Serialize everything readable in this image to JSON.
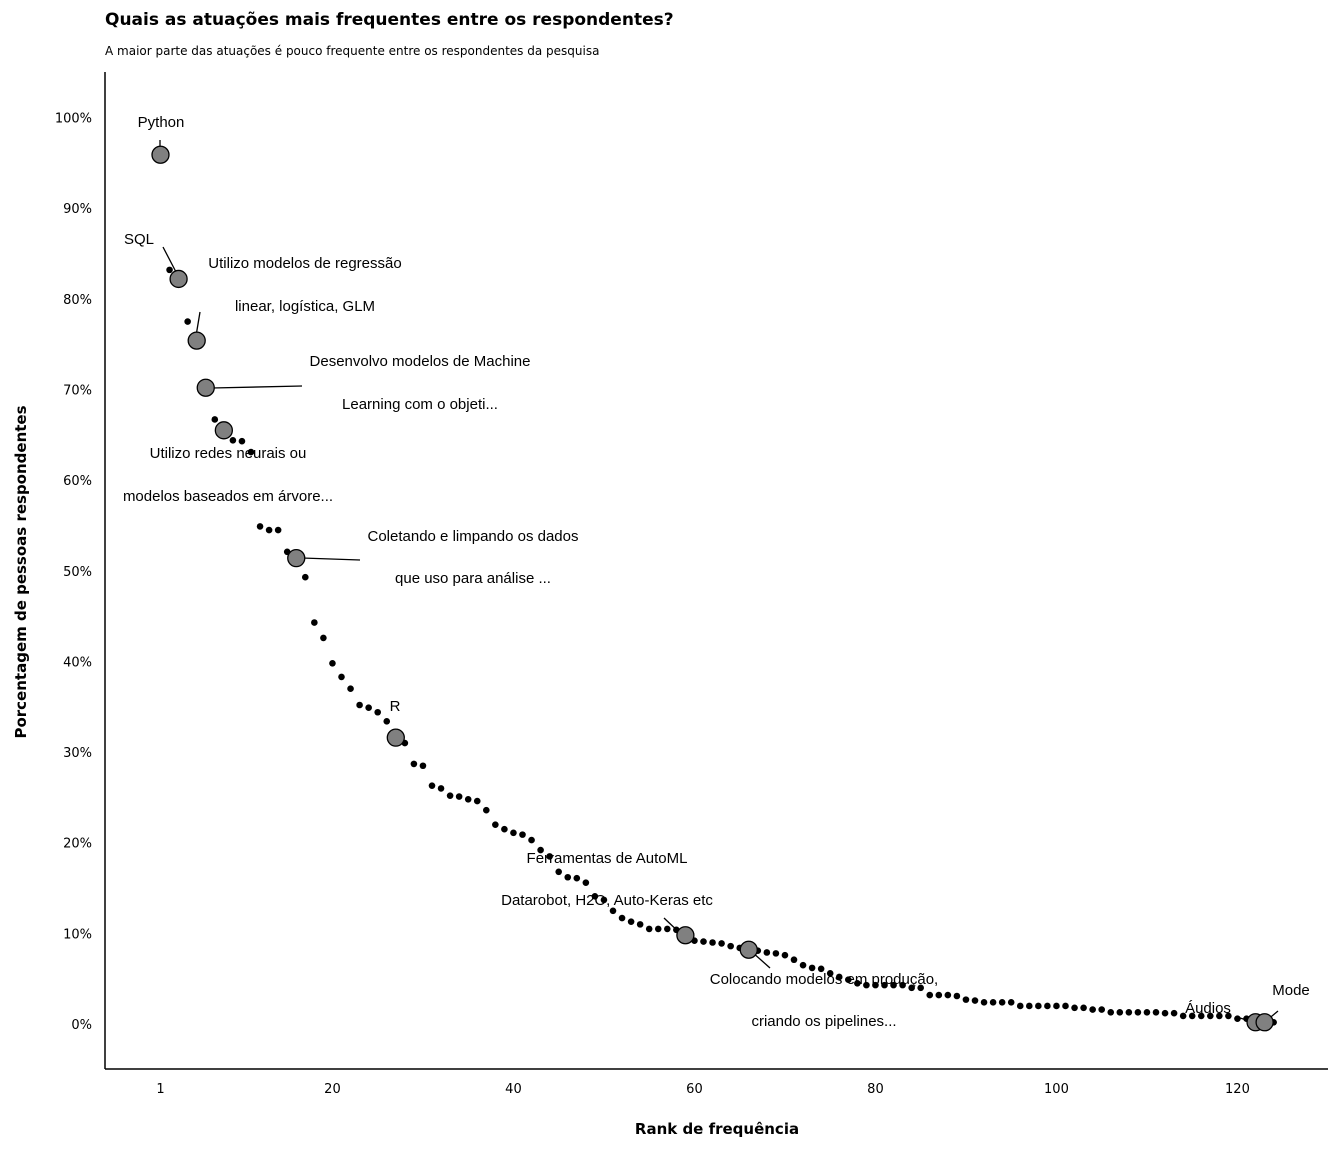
{
  "chart_data": {
    "type": "scatter",
    "title": "Quais as atuações mais frequentes entre os respondentes?",
    "subtitle": "A maior parte das atuações é pouco frequente entre os respondentes da pesquisa",
    "xlabel": "Rank de frequência",
    "ylabel": "Porcentagem de pessoas respondentes",
    "xlim": [
      -5,
      130
    ],
    "ylim": [
      -5,
      105
    ],
    "x_ticks": [
      {
        "value": 1,
        "label": "1"
      },
      {
        "value": 20,
        "label": "20"
      },
      {
        "value": 40,
        "label": "40"
      },
      {
        "value": 60,
        "label": "60"
      },
      {
        "value": 80,
        "label": "80"
      },
      {
        "value": 100,
        "label": "100"
      },
      {
        "value": 120,
        "label": "120"
      }
    ],
    "y_ticks": [
      {
        "value": 0,
        "label": "0%"
      },
      {
        "value": 10,
        "label": "10%"
      },
      {
        "value": 20,
        "label": "20%"
      },
      {
        "value": 30,
        "label": "30%"
      },
      {
        "value": 40,
        "label": "40%"
      },
      {
        "value": 50,
        "label": "50%"
      },
      {
        "value": 60,
        "label": "60%"
      },
      {
        "value": 70,
        "label": "70%"
      },
      {
        "value": 80,
        "label": "80%"
      },
      {
        "value": 90,
        "label": "90%"
      },
      {
        "value": 100,
        "label": "100%"
      }
    ],
    "grid": false,
    "colors": {
      "point": "#000000",
      "highlight_fill": "#808080",
      "highlight_stroke": "#000000"
    },
    "points": [
      [
        1,
        96
      ],
      [
        2,
        83.3
      ],
      [
        3,
        82.3
      ],
      [
        4,
        77.6
      ],
      [
        5,
        75.5
      ],
      [
        6,
        70.3
      ],
      [
        7,
        66.8
      ],
      [
        8,
        65.6
      ],
      [
        9,
        64.5
      ],
      [
        10,
        64.4
      ],
      [
        11,
        63.2
      ],
      [
        12,
        55
      ],
      [
        13,
        54.6
      ],
      [
        14,
        54.6
      ],
      [
        15,
        52.2
      ],
      [
        16,
        51.5
      ],
      [
        17,
        49.4
      ],
      [
        18,
        44.4
      ],
      [
        19,
        42.7
      ],
      [
        20,
        39.9
      ],
      [
        21,
        38.4
      ],
      [
        22,
        37.1
      ],
      [
        23,
        35.3
      ],
      [
        24,
        35
      ],
      [
        25,
        34.5
      ],
      [
        26,
        33.5
      ],
      [
        27,
        31.7
      ],
      [
        28,
        31.1
      ],
      [
        29,
        28.8
      ],
      [
        30,
        28.6
      ],
      [
        31,
        26.4
      ],
      [
        32,
        26.1
      ],
      [
        33,
        25.3
      ],
      [
        34,
        25.2
      ],
      [
        35,
        24.9
      ],
      [
        36,
        24.7
      ],
      [
        37,
        23.7
      ],
      [
        38,
        22.1
      ],
      [
        39,
        21.6
      ],
      [
        40,
        21.2
      ],
      [
        41,
        21
      ],
      [
        42,
        20.4
      ],
      [
        43,
        19.3
      ],
      [
        44,
        18.6
      ],
      [
        45,
        16.9
      ],
      [
        46,
        16.3
      ],
      [
        47,
        16.2
      ],
      [
        48,
        15.7
      ],
      [
        49,
        14.2
      ],
      [
        50,
        13.8
      ],
      [
        51,
        12.6
      ],
      [
        52,
        11.8
      ],
      [
        53,
        11.4
      ],
      [
        54,
        11.1
      ],
      [
        55,
        10.6
      ],
      [
        56,
        10.6
      ],
      [
        57,
        10.6
      ],
      [
        58,
        10.5
      ],
      [
        59,
        9.9
      ],
      [
        60,
        9.3
      ],
      [
        61,
        9.2
      ],
      [
        62,
        9.1
      ],
      [
        63,
        9
      ],
      [
        64,
        8.7
      ],
      [
        65,
        8.5
      ],
      [
        66,
        8.3
      ],
      [
        67,
        8.2
      ],
      [
        68,
        8
      ],
      [
        69,
        7.9
      ],
      [
        70,
        7.7
      ],
      [
        71,
        7.2
      ],
      [
        72,
        6.6
      ],
      [
        73,
        6.3
      ],
      [
        74,
        6.2
      ],
      [
        75,
        5.7
      ],
      [
        76,
        5.3
      ],
      [
        77,
        5
      ],
      [
        78,
        4.6
      ],
      [
        79,
        4.4
      ],
      [
        80,
        4.4
      ],
      [
        81,
        4.4
      ],
      [
        82,
        4.4
      ],
      [
        83,
        4.4
      ],
      [
        84,
        4.1
      ],
      [
        85,
        4.1
      ],
      [
        86,
        3.3
      ],
      [
        87,
        3.3
      ],
      [
        88,
        3.3
      ],
      [
        89,
        3.2
      ],
      [
        90,
        2.8
      ],
      [
        91,
        2.7
      ],
      [
        92,
        2.5
      ],
      [
        93,
        2.5
      ],
      [
        94,
        2.5
      ],
      [
        95,
        2.5
      ],
      [
        96,
        2.1
      ],
      [
        97,
        2.1
      ],
      [
        98,
        2.1
      ],
      [
        99,
        2.1
      ],
      [
        100,
        2.1
      ],
      [
        101,
        2.1
      ],
      [
        102,
        1.9
      ],
      [
        103,
        1.9
      ],
      [
        104,
        1.7
      ],
      [
        105,
        1.7
      ],
      [
        106,
        1.4
      ],
      [
        107,
        1.4
      ],
      [
        108,
        1.4
      ],
      [
        109,
        1.4
      ],
      [
        110,
        1.4
      ],
      [
        111,
        1.4
      ],
      [
        112,
        1.3
      ],
      [
        113,
        1.3
      ],
      [
        114,
        1
      ],
      [
        115,
        1
      ],
      [
        116,
        1
      ],
      [
        117,
        1
      ],
      [
        118,
        1
      ],
      [
        119,
        1
      ],
      [
        120,
        0.7
      ],
      [
        121,
        0.7
      ],
      [
        122,
        0.3
      ],
      [
        123,
        0.3
      ],
      [
        124,
        0.3
      ]
    ],
    "highlights": [
      {
        "x": 1,
        "y": 96,
        "lines": [
          "Python"
        ]
      },
      {
        "x": 3,
        "y": 82.3,
        "lines": [
          "SQL"
        ]
      },
      {
        "x": 5,
        "y": 75.5,
        "lines": [
          "Utilizo modelos de regressão",
          "linear, logística, GLM"
        ]
      },
      {
        "x": 6,
        "y": 70.3,
        "lines": [
          "Desenvolvo modelos de Machine",
          "Learning com o objeti..."
        ]
      },
      {
        "x": 8,
        "y": 65.6,
        "lines": [
          "Utilizo redes neurais ou",
          "modelos baseados em árvore..."
        ]
      },
      {
        "x": 16,
        "y": 51.5,
        "lines": [
          "Coletando e limpando os dados",
          "que uso para análise ..."
        ]
      },
      {
        "x": 27,
        "y": 31.7,
        "lines": [
          "R"
        ]
      },
      {
        "x": 59,
        "y": 9.9,
        "lines": [
          "Ferramentas de AutoML",
          "Datarobot, H2O, Auto-Keras etc"
        ]
      },
      {
        "x": 66,
        "y": 8.3,
        "lines": [
          "Colocando modelos em produção,",
          "criando os pipelines..."
        ]
      },
      {
        "x": 122,
        "y": 0.3,
        "lines": [
          "Áudios"
        ]
      },
      {
        "x": 123,
        "y": 0.3,
        "lines": [
          "Mode"
        ]
      }
    ]
  }
}
